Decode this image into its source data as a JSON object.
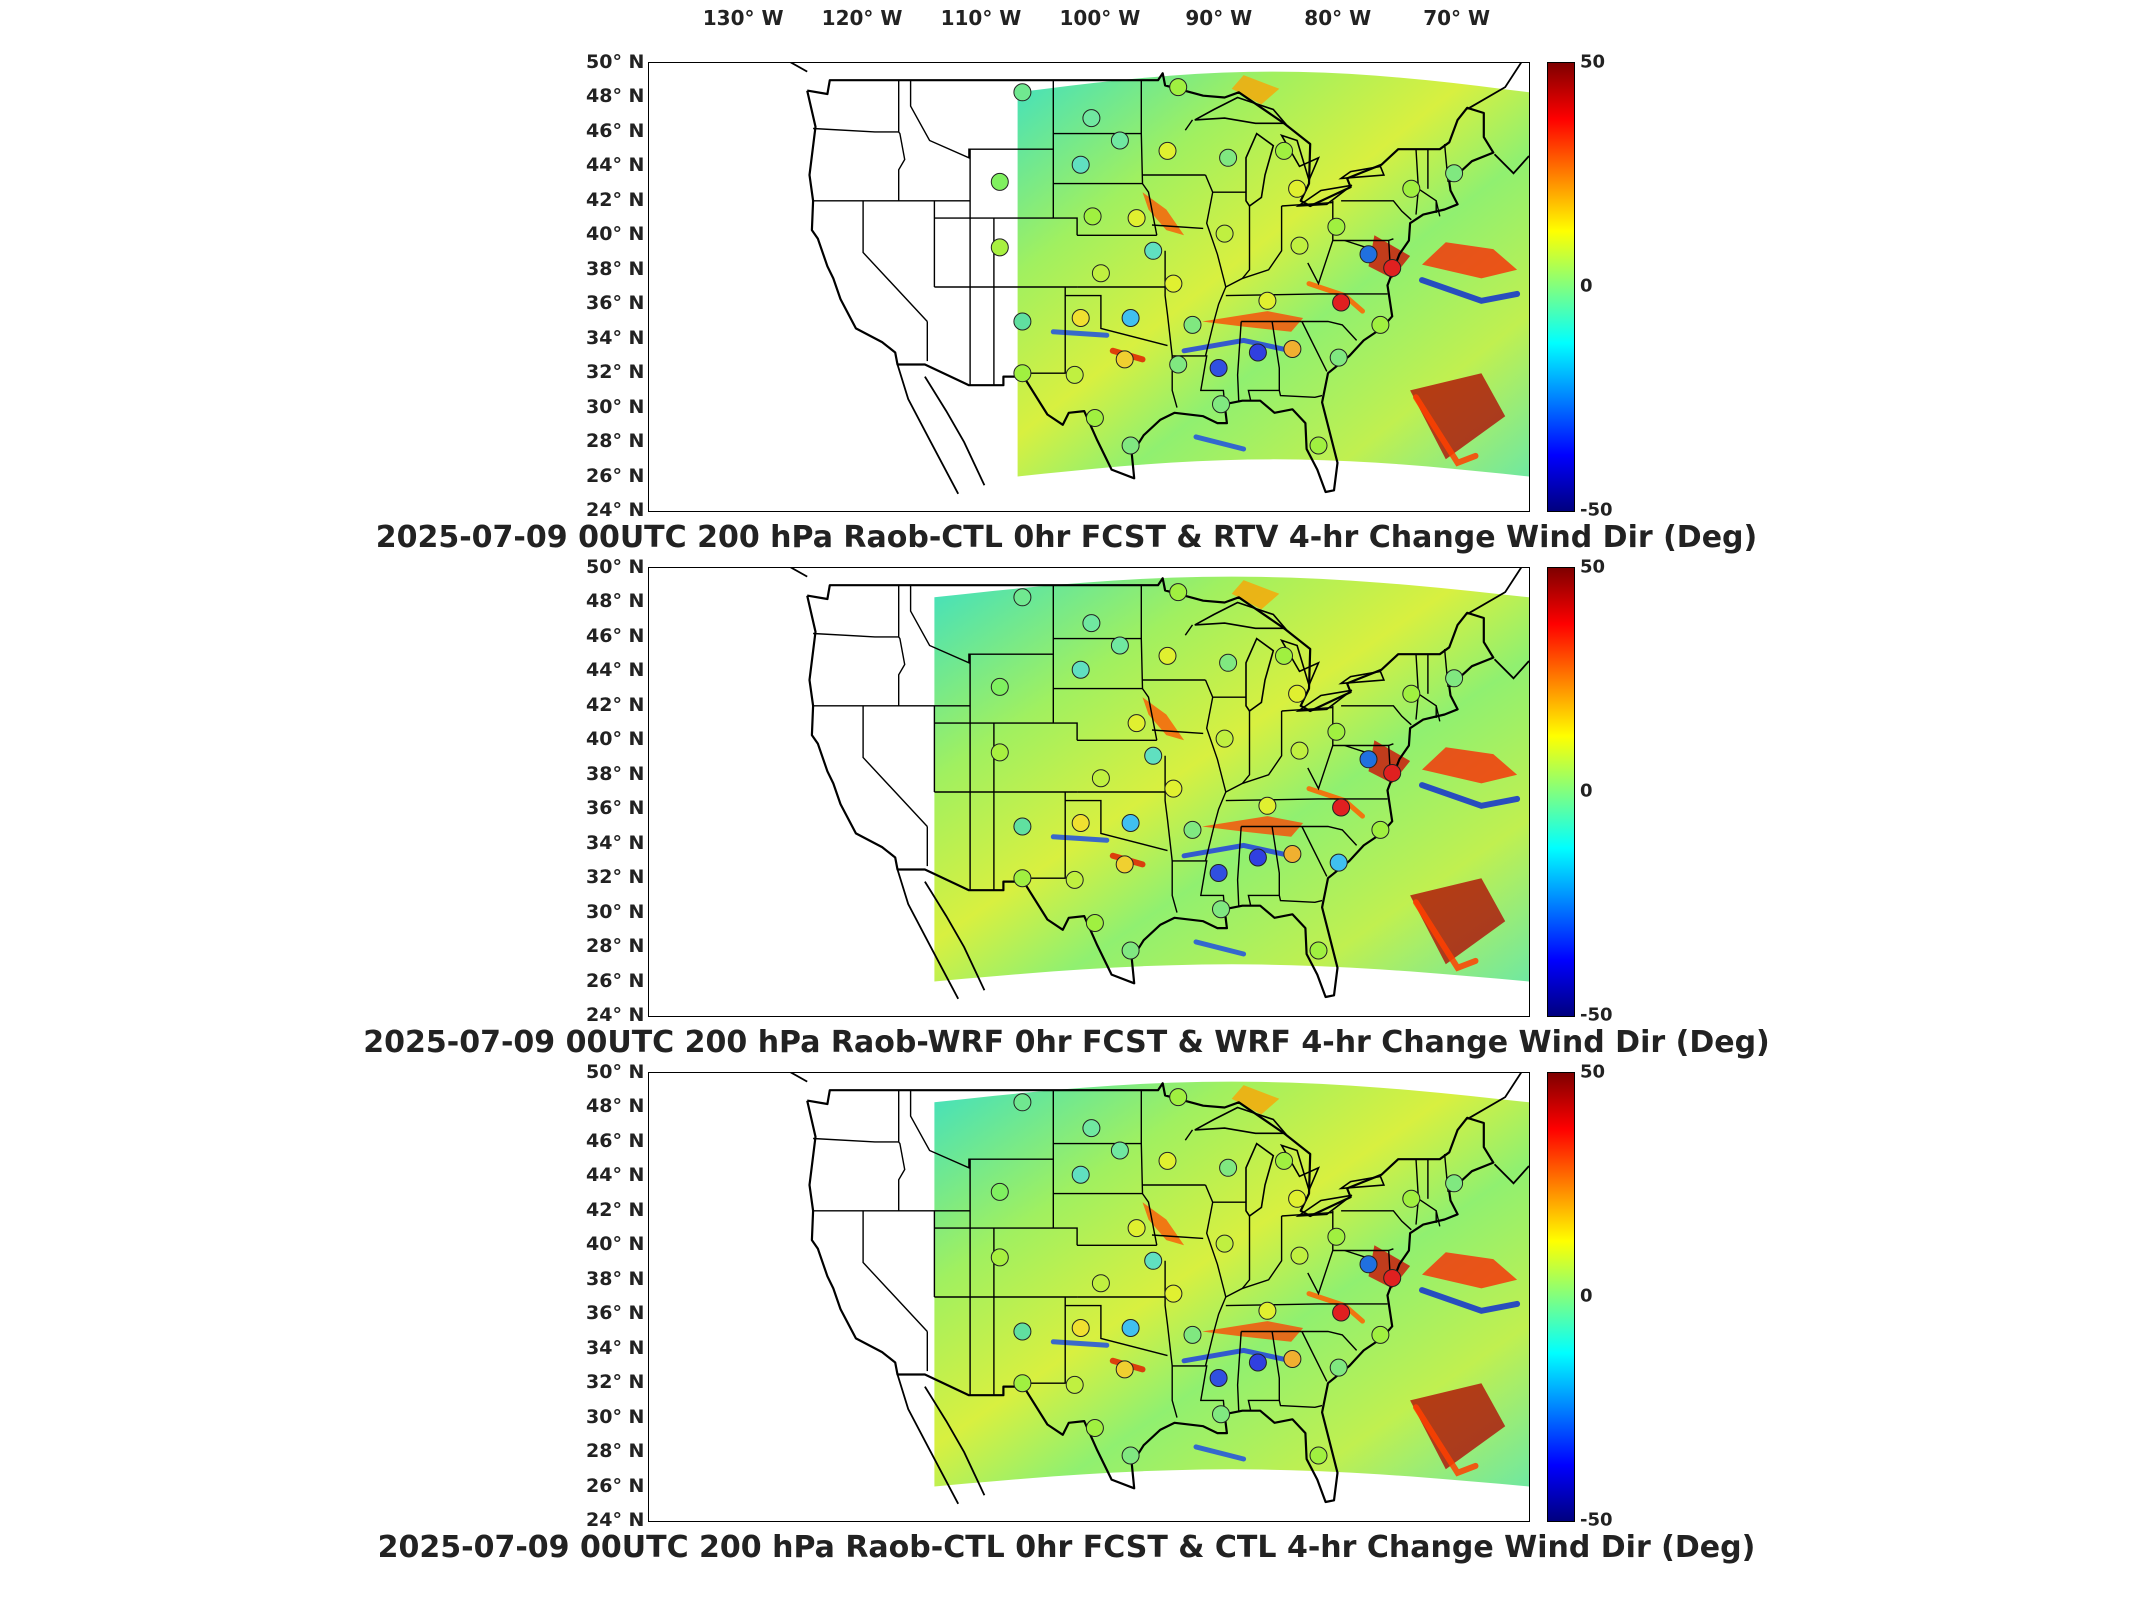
{
  "longitude_labels": [
    "130° W",
    "120° W",
    "110° W",
    "100° W",
    "90° W",
    "80° W",
    "70° W"
  ],
  "latitude_labels": [
    "50° N",
    "48° N",
    "46° N",
    "44° N",
    "42° N",
    "40° N",
    "38° N",
    "36° N",
    "34° N",
    "32° N",
    "30° N",
    "28° N",
    "26° N",
    "24° N"
  ],
  "colorbar": {
    "min": -50,
    "max": 50,
    "tick_labels": [
      "50",
      "0",
      "-50"
    ],
    "colors": [
      "#00007f",
      "#0000ff",
      "#0080ff",
      "#00ffff",
      "#80ff80",
      "#ffff00",
      "#ff8000",
      "#ff0000",
      "#7f0000"
    ]
  },
  "panels": [
    {
      "title": "2025-07-09 00UTC 200 hPa Raob-CTL 0hr FCST & RTV 4-hr Change Wind Dir (Deg)",
      "field_west_edge_lon": -107,
      "stations": [
        {
          "lon": -106.6,
          "lat": 48.3,
          "color": "#70e890"
        },
        {
          "lon": -108.5,
          "lat": 43.1,
          "color": "#80f060"
        },
        {
          "lon": -108.5,
          "lat": 39.3,
          "color": "#a8f040"
        },
        {
          "lon": -106.6,
          "lat": 35.0,
          "color": "#60e0a0"
        },
        {
          "lon": -106.6,
          "lat": 32.0,
          "color": "#a0f040"
        },
        {
          "lon": -100.8,
          "lat": 46.8,
          "color": "#70e8a0"
        },
        {
          "lon": -98.4,
          "lat": 45.5,
          "color": "#70e8a0"
        },
        {
          "lon": -101.7,
          "lat": 44.1,
          "color": "#60e0c0"
        },
        {
          "lon": -97.0,
          "lat": 41.0,
          "color": "#e0f030"
        },
        {
          "lon": -100.7,
          "lat": 41.1,
          "color": "#a0f040"
        },
        {
          "lon": -100.0,
          "lat": 37.8,
          "color": "#c0f040"
        },
        {
          "lon": -95.6,
          "lat": 39.1,
          "color": "#60e0c0"
        },
        {
          "lon": -101.7,
          "lat": 35.2,
          "color": "#f0e030"
        },
        {
          "lon": -97.5,
          "lat": 35.2,
          "color": "#40c0f0"
        },
        {
          "lon": -98.0,
          "lat": 32.8,
          "color": "#f0d030"
        },
        {
          "lon": -102.2,
          "lat": 31.9,
          "color": "#c0f040"
        },
        {
          "lon": -100.5,
          "lat": 29.4,
          "color": "#a0f040"
        },
        {
          "lon": -97.5,
          "lat": 27.8,
          "color": "#80e880"
        },
        {
          "lon": -94.4,
          "lat": 44.9,
          "color": "#e0f030"
        },
        {
          "lon": -93.5,
          "lat": 48.6,
          "color": "#a0f040"
        },
        {
          "lon": -89.3,
          "lat": 44.5,
          "color": "#80e880"
        },
        {
          "lon": -89.6,
          "lat": 40.1,
          "color": "#c0f040"
        },
        {
          "lon": -93.9,
          "lat": 37.2,
          "color": "#e0f030"
        },
        {
          "lon": -92.3,
          "lat": 34.8,
          "color": "#80e880"
        },
        {
          "lon": -93.5,
          "lat": 32.5,
          "color": "#80e880"
        },
        {
          "lon": -90.1,
          "lat": 32.3,
          "color": "#3050e0"
        },
        {
          "lon": -86.8,
          "lat": 33.2,
          "color": "#3040e0"
        },
        {
          "lon": -86.0,
          "lat": 36.2,
          "color": "#e0f030"
        },
        {
          "lon": -83.9,
          "lat": 33.4,
          "color": "#f0b030"
        },
        {
          "lon": -84.6,
          "lat": 44.9,
          "color": "#a0f040"
        },
        {
          "lon": -83.5,
          "lat": 42.7,
          "color": "#e0f030"
        },
        {
          "lon": -83.3,
          "lat": 39.4,
          "color": "#c0f040"
        },
        {
          "lon": -80.2,
          "lat": 40.5,
          "color": "#a0f040"
        },
        {
          "lon": -79.8,
          "lat": 36.1,
          "color": "#e02020"
        },
        {
          "lon": -77.5,
          "lat": 38.9,
          "color": "#2070e0"
        },
        {
          "lon": -75.5,
          "lat": 38.1,
          "color": "#e02020"
        },
        {
          "lon": -76.5,
          "lat": 34.8,
          "color": "#a0f040"
        },
        {
          "lon": -80.0,
          "lat": 32.9,
          "color": "#80e880"
        },
        {
          "lon": -81.7,
          "lat": 27.8,
          "color": "#a0f040"
        },
        {
          "lon": -73.9,
          "lat": 42.7,
          "color": "#a0f040"
        },
        {
          "lon": -70.3,
          "lat": 43.6,
          "color": "#80e880"
        },
        {
          "lon": -89.9,
          "lat": 30.2,
          "color": "#80e880"
        }
      ]
    },
    {
      "title": "2025-07-09 00UTC 200 hPa Raob-WRF 0hr FCST & WRF 4-hr Change Wind Dir (Deg)",
      "field_west_edge_lon": -114,
      "stations": [
        {
          "lon": -106.6,
          "lat": 48.3,
          "color": "#70e890"
        },
        {
          "lon": -108.5,
          "lat": 43.1,
          "color": "#80f060"
        },
        {
          "lon": -108.5,
          "lat": 39.3,
          "color": "#a8f040"
        },
        {
          "lon": -106.6,
          "lat": 35.0,
          "color": "#60e0a0"
        },
        {
          "lon": -106.6,
          "lat": 32.0,
          "color": "#a0f040"
        },
        {
          "lon": -100.8,
          "lat": 46.8,
          "color": "#70e8a0"
        },
        {
          "lon": -98.4,
          "lat": 45.5,
          "color": "#70e8a0"
        },
        {
          "lon": -101.7,
          "lat": 44.1,
          "color": "#60e0c0"
        },
        {
          "lon": -97.0,
          "lat": 41.0,
          "color": "#e0f030"
        },
        {
          "lon": -100.0,
          "lat": 37.8,
          "color": "#c0f040"
        },
        {
          "lon": -95.6,
          "lat": 39.1,
          "color": "#60e0c0"
        },
        {
          "lon": -101.7,
          "lat": 35.2,
          "color": "#f0e030"
        },
        {
          "lon": -97.5,
          "lat": 35.2,
          "color": "#40c0f0"
        },
        {
          "lon": -98.0,
          "lat": 32.8,
          "color": "#f0d030"
        },
        {
          "lon": -102.2,
          "lat": 31.9,
          "color": "#c0f040"
        },
        {
          "lon": -100.5,
          "lat": 29.4,
          "color": "#a0f040"
        },
        {
          "lon": -97.5,
          "lat": 27.8,
          "color": "#80e880"
        },
        {
          "lon": -94.4,
          "lat": 44.9,
          "color": "#e0f030"
        },
        {
          "lon": -93.5,
          "lat": 48.6,
          "color": "#a0f040"
        },
        {
          "lon": -89.3,
          "lat": 44.5,
          "color": "#80e880"
        },
        {
          "lon": -89.6,
          "lat": 40.1,
          "color": "#c0f040"
        },
        {
          "lon": -93.9,
          "lat": 37.2,
          "color": "#e0f030"
        },
        {
          "lon": -92.3,
          "lat": 34.8,
          "color": "#80e880"
        },
        {
          "lon": -90.1,
          "lat": 32.3,
          "color": "#3050e0"
        },
        {
          "lon": -86.8,
          "lat": 33.2,
          "color": "#3040e0"
        },
        {
          "lon": -86.0,
          "lat": 36.2,
          "color": "#e0f030"
        },
        {
          "lon": -83.9,
          "lat": 33.4,
          "color": "#f0b030"
        },
        {
          "lon": -84.6,
          "lat": 44.9,
          "color": "#a0f040"
        },
        {
          "lon": -83.5,
          "lat": 42.7,
          "color": "#e0f030"
        },
        {
          "lon": -83.3,
          "lat": 39.4,
          "color": "#c0f040"
        },
        {
          "lon": -80.2,
          "lat": 40.5,
          "color": "#a0f040"
        },
        {
          "lon": -79.8,
          "lat": 36.1,
          "color": "#e02020"
        },
        {
          "lon": -77.5,
          "lat": 38.9,
          "color": "#2070e0"
        },
        {
          "lon": -75.5,
          "lat": 38.1,
          "color": "#e02020"
        },
        {
          "lon": -76.5,
          "lat": 34.8,
          "color": "#a0f040"
        },
        {
          "lon": -80.0,
          "lat": 32.9,
          "color": "#40c0f0"
        },
        {
          "lon": -81.7,
          "lat": 27.8,
          "color": "#a0f040"
        },
        {
          "lon": -73.9,
          "lat": 42.7,
          "color": "#a0f040"
        },
        {
          "lon": -70.3,
          "lat": 43.6,
          "color": "#80e880"
        },
        {
          "lon": -89.9,
          "lat": 30.2,
          "color": "#80e880"
        }
      ]
    },
    {
      "title": "2025-07-09 00UTC 200 hPa Raob-CTL 0hr FCST & CTL 4-hr Change Wind Dir (Deg)",
      "field_west_edge_lon": -114,
      "stations": [
        {
          "lon": -106.6,
          "lat": 48.3,
          "color": "#70e890"
        },
        {
          "lon": -108.5,
          "lat": 43.1,
          "color": "#80f060"
        },
        {
          "lon": -108.5,
          "lat": 39.3,
          "color": "#a8f040"
        },
        {
          "lon": -106.6,
          "lat": 35.0,
          "color": "#60e0a0"
        },
        {
          "lon": -106.6,
          "lat": 32.0,
          "color": "#a0f040"
        },
        {
          "lon": -100.8,
          "lat": 46.8,
          "color": "#70e8a0"
        },
        {
          "lon": -98.4,
          "lat": 45.5,
          "color": "#70e8a0"
        },
        {
          "lon": -101.7,
          "lat": 44.1,
          "color": "#60e0c0"
        },
        {
          "lon": -97.0,
          "lat": 41.0,
          "color": "#e0f030"
        },
        {
          "lon": -100.0,
          "lat": 37.8,
          "color": "#c0f040"
        },
        {
          "lon": -95.6,
          "lat": 39.1,
          "color": "#60e0c0"
        },
        {
          "lon": -101.7,
          "lat": 35.2,
          "color": "#f0e030"
        },
        {
          "lon": -97.5,
          "lat": 35.2,
          "color": "#40c0f0"
        },
        {
          "lon": -98.0,
          "lat": 32.8,
          "color": "#f0d030"
        },
        {
          "lon": -102.2,
          "lat": 31.9,
          "color": "#c0f040"
        },
        {
          "lon": -100.5,
          "lat": 29.4,
          "color": "#a0f040"
        },
        {
          "lon": -97.5,
          "lat": 27.8,
          "color": "#80e880"
        },
        {
          "lon": -94.4,
          "lat": 44.9,
          "color": "#e0f030"
        },
        {
          "lon": -93.5,
          "lat": 48.6,
          "color": "#a0f040"
        },
        {
          "lon": -89.3,
          "lat": 44.5,
          "color": "#80e880"
        },
        {
          "lon": -89.6,
          "lat": 40.1,
          "color": "#c0f040"
        },
        {
          "lon": -93.9,
          "lat": 37.2,
          "color": "#e0f030"
        },
        {
          "lon": -92.3,
          "lat": 34.8,
          "color": "#80e880"
        },
        {
          "lon": -90.1,
          "lat": 32.3,
          "color": "#3050e0"
        },
        {
          "lon": -86.8,
          "lat": 33.2,
          "color": "#3040e0"
        },
        {
          "lon": -86.0,
          "lat": 36.2,
          "color": "#e0f030"
        },
        {
          "lon": -83.9,
          "lat": 33.4,
          "color": "#f0b030"
        },
        {
          "lon": -84.6,
          "lat": 44.9,
          "color": "#a0f040"
        },
        {
          "lon": -83.5,
          "lat": 42.7,
          "color": "#e0f030"
        },
        {
          "lon": -83.3,
          "lat": 39.4,
          "color": "#c0f040"
        },
        {
          "lon": -80.2,
          "lat": 40.5,
          "color": "#a0f040"
        },
        {
          "lon": -79.8,
          "lat": 36.1,
          "color": "#e02020"
        },
        {
          "lon": -77.5,
          "lat": 38.9,
          "color": "#2070e0"
        },
        {
          "lon": -75.5,
          "lat": 38.1,
          "color": "#e02020"
        },
        {
          "lon": -76.5,
          "lat": 34.8,
          "color": "#a0f040"
        },
        {
          "lon": -80.0,
          "lat": 32.9,
          "color": "#80e880"
        },
        {
          "lon": -81.7,
          "lat": 27.8,
          "color": "#a0f040"
        },
        {
          "lon": -73.9,
          "lat": 42.7,
          "color": "#a0f040"
        },
        {
          "lon": -70.3,
          "lat": 43.6,
          "color": "#80e880"
        },
        {
          "lon": -89.9,
          "lat": 30.2,
          "color": "#80e880"
        }
      ]
    }
  ]
}
